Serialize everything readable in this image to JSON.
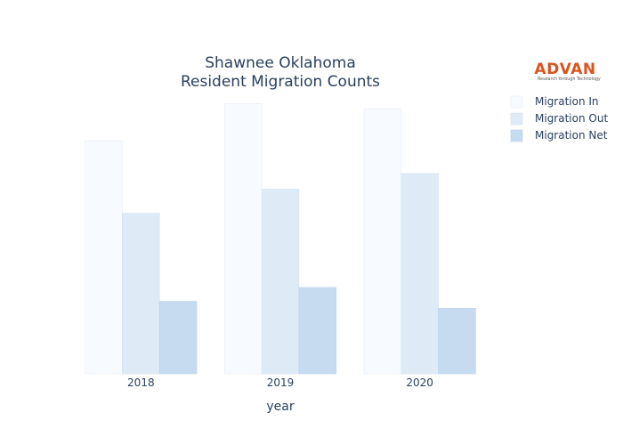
{
  "logo": {
    "name": "ADVAN",
    "tagline": "Research through Technology",
    "color": "#d9541e"
  },
  "chart_data": {
    "type": "bar",
    "title": "Shawnee Oklahoma",
    "subtitle": "Resident Migration Counts",
    "xlabel": "year",
    "ylabel": "",
    "categories": [
      "2018",
      "2019",
      "2020"
    ],
    "series": [
      {
        "name": "Migration In",
        "values": [
          2700,
          3130,
          3070
        ],
        "color": "#f7fbff",
        "stroke": "#e6eef8"
      },
      {
        "name": "Migration Out",
        "values": [
          1860,
          2140,
          2320
        ],
        "color": "#deebf7",
        "stroke": "#d2e2f2"
      },
      {
        "name": "Migration Net",
        "values": [
          840,
          1000,
          760
        ],
        "color": "#c6dbef",
        "stroke": "#b9d1ea"
      }
    ],
    "ylim": [
      0,
      3300
    ],
    "grid": false,
    "legend": "top-right"
  }
}
